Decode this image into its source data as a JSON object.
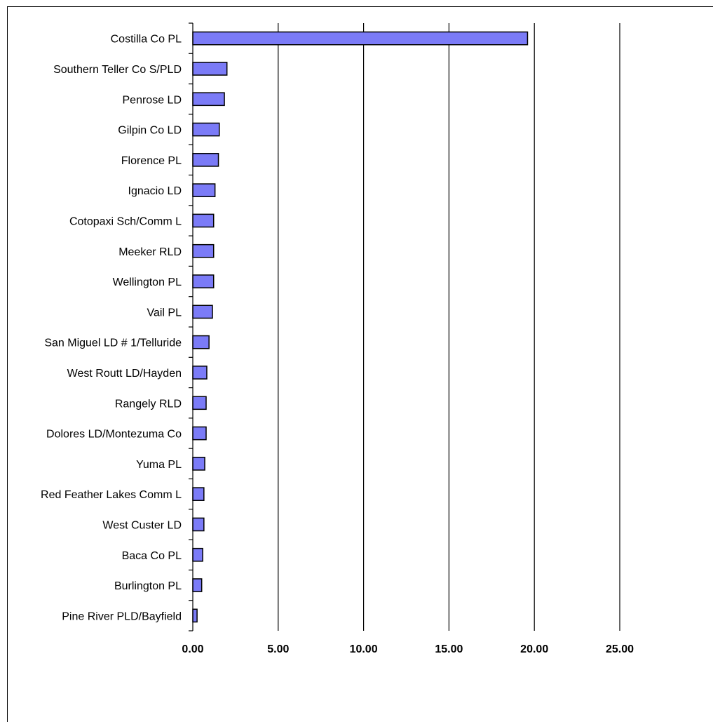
{
  "chart_data": {
    "type": "bar",
    "orientation": "horizontal",
    "title": "",
    "xlabel": "",
    "ylabel": "",
    "categories": [
      "Costilla Co PL",
      "Southern Teller Co S/PLD",
      "Penrose LD",
      "Gilpin Co LD",
      "Florence PL",
      "Ignacio LD",
      "Cotopaxi Sch/Comm L",
      "Meeker RLD",
      "Wellington PL",
      "Vail PL",
      "San Miguel LD # 1/Telluride",
      "West Routt LD/Hayden",
      "Rangely RLD",
      "Dolores LD/Montezuma Co",
      "Yuma PL",
      "Red Feather Lakes Comm L",
      "West Custer LD",
      "Baca Co PL",
      "Burlington PL",
      "Pine River PLD/Bayfield"
    ],
    "values": [
      19.6,
      2.0,
      1.85,
      1.55,
      1.5,
      1.3,
      1.22,
      1.22,
      1.22,
      1.15,
      0.95,
      0.82,
      0.78,
      0.78,
      0.7,
      0.65,
      0.65,
      0.58,
      0.52,
      0.25
    ],
    "xlim": [
      0,
      25
    ],
    "xticks": [
      "0.00",
      "5.00",
      "10.00",
      "15.00",
      "20.00",
      "25.00"
    ],
    "grid": "vertical",
    "legend": "none",
    "bar_color": "#7b7bf7",
    "bar_edge_color": "#000000"
  }
}
